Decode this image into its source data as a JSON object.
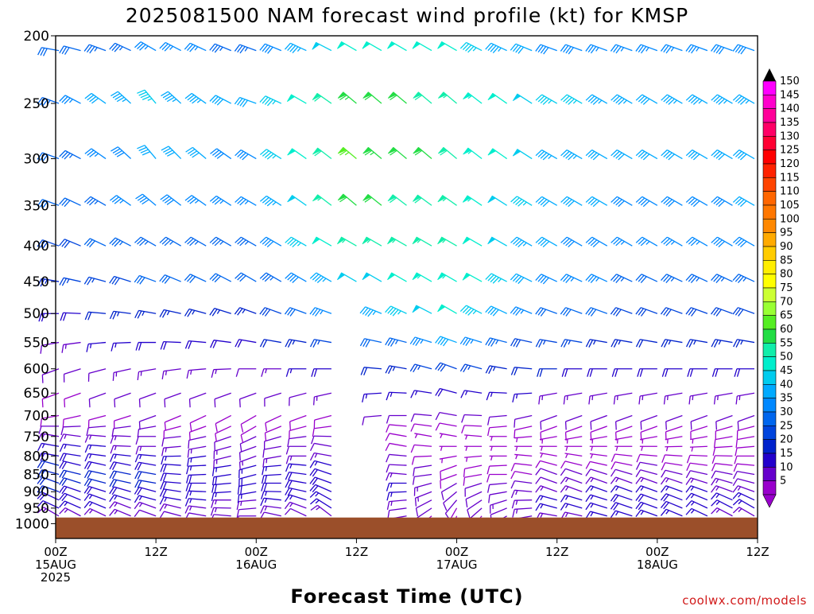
{
  "chart_data": {
    "type": "wind-barb-timeseries",
    "title": "2025081500 NAM forecast wind profile (kt) for KMSP",
    "xlabel": "Forecast Time (UTC)",
    "ylabel": "",
    "y_scale": "log",
    "ylim": [
      1000,
      200
    ],
    "pressure_ticks": [
      "200",
      "250",
      "300",
      "350",
      "400",
      "450",
      "500",
      "550",
      "600",
      "650",
      "700",
      "750",
      "800",
      "850",
      "900",
      "950",
      "1000"
    ],
    "x_ticks": [
      {
        "hour": 0,
        "line1": "00Z",
        "line2": "15AUG",
        "line3": "2025"
      },
      {
        "hour": 12,
        "line1": "12Z",
        "line2": "",
        "line3": ""
      },
      {
        "hour": 24,
        "line1": "00Z",
        "line2": "16AUG",
        "line3": ""
      },
      {
        "hour": 36,
        "line1": "12Z",
        "line2": "",
        "line3": ""
      },
      {
        "hour": 48,
        "line1": "00Z",
        "line2": "17AUG",
        "line3": ""
      },
      {
        "hour": 60,
        "line1": "12Z",
        "line2": "",
        "line3": ""
      },
      {
        "hour": 72,
        "line1": "00Z",
        "line2": "18AUG",
        "line3": ""
      },
      {
        "hour": 84,
        "line1": "12Z",
        "line2": "",
        "line3": ""
      }
    ],
    "xlim": [
      0,
      84
    ],
    "time_step_hours": 3,
    "pressure_levels": [
      1000,
      975,
      950,
      925,
      900,
      875,
      850,
      825,
      800,
      775,
      750,
      725,
      700,
      650,
      600,
      550,
      500,
      450,
      400,
      350,
      300,
      250,
      210
    ],
    "surface_pressure": 980,
    "surface_color": "#9b4f2a",
    "colorbar": {
      "labels": [
        "150",
        "145",
        "140",
        "135",
        "130",
        "125",
        "120",
        "115",
        "110",
        "105",
        "100",
        "95",
        "90",
        "85",
        "80",
        "75",
        "70",
        "65",
        "60",
        "55",
        "50",
        "45",
        "40",
        "35",
        "30",
        "25",
        "20",
        "15",
        "10",
        "5"
      ],
      "colors": [
        "#ff00ff",
        "#ff00cc",
        "#ff0099",
        "#ff0066",
        "#ff0033",
        "#ff0000",
        "#ff2200",
        "#ff4400",
        "#ff6600",
        "#ff7700",
        "#ff8800",
        "#ffaa00",
        "#ffcc00",
        "#ffee00",
        "#ffff00",
        "#ccff33",
        "#99ff33",
        "#55ee22",
        "#22dd44",
        "#11eeaa",
        "#00eecc",
        "#00ccee",
        "#00aaff",
        "#0088ff",
        "#0066ee",
        "#0044dd",
        "#0022cc",
        "#2200cc",
        "#6600cc",
        "#9900cc"
      ]
    },
    "wind_profile_columns": [
      {
        "hour": 0,
        "speeds_kt": [
          12,
          14,
          16,
          18,
          20,
          22,
          22,
          20,
          18,
          16,
          14,
          10,
          8,
          8,
          10,
          12,
          18,
          24,
          28,
          30,
          32,
          34,
          30
        ],
        "directions_deg": [
          300,
          300,
          295,
          295,
          290,
          290,
          285,
          285,
          280,
          280,
          280,
          270,
          260,
          250,
          250,
          260,
          270,
          280,
          290,
          290,
          290,
          290,
          280
        ]
      },
      {
        "hour": 12,
        "speeds_kt": [
          10,
          12,
          14,
          16,
          18,
          20,
          20,
          18,
          16,
          14,
          12,
          10,
          10,
          12,
          14,
          18,
          24,
          30,
          34,
          38,
          42,
          46,
          36
        ],
        "directions_deg": [
          290,
          290,
          290,
          285,
          285,
          280,
          280,
          280,
          275,
          270,
          270,
          260,
          250,
          250,
          260,
          270,
          280,
          290,
          300,
          310,
          320,
          320,
          300
        ]
      },
      {
        "hour": 24,
        "speeds_kt": [
          8,
          10,
          12,
          14,
          16,
          18,
          18,
          16,
          14,
          12,
          10,
          8,
          8,
          10,
          12,
          18,
          24,
          30,
          34,
          36,
          38,
          40,
          34
        ],
        "directions_deg": [
          270,
          270,
          265,
          265,
          260,
          260,
          255,
          255,
          250,
          250,
          245,
          240,
          240,
          250,
          270,
          280,
          290,
          300,
          300,
          300,
          300,
          290,
          290
        ]
      },
      {
        "hour": 36,
        "speeds_kt": [
          10,
          14,
          16,
          18,
          20,
          20,
          18,
          16,
          14,
          12,
          10,
          8,
          10,
          14,
          20,
          28,
          40,
          48,
          56,
          62,
          66,
          64,
          52
        ],
        "directions_deg": [
          320,
          320,
          315,
          310,
          305,
          300,
          300,
          295,
          290,
          290,
          280,
          270,
          260,
          260,
          270,
          280,
          290,
          300,
          300,
          310,
          310,
          310,
          300
        ]
      },
      {
        "hour": 48,
        "speeds_kt": [
          6,
          8,
          8,
          10,
          10,
          10,
          8,
          8,
          6,
          6,
          6,
          8,
          12,
          18,
          28,
          40,
          50,
          54,
          56,
          56,
          58,
          56,
          50
        ],
        "directions_deg": [
          200,
          200,
          210,
          220,
          230,
          240,
          250,
          250,
          260,
          270,
          280,
          280,
          280,
          285,
          290,
          290,
          300,
          300,
          300,
          305,
          310,
          310,
          300
        ]
      },
      {
        "hour": 60,
        "speeds_kt": [
          12,
          14,
          16,
          16,
          14,
          12,
          10,
          8,
          6,
          6,
          6,
          8,
          10,
          14,
          20,
          26,
          32,
          38,
          40,
          42,
          44,
          46,
          38
        ],
        "directions_deg": [
          280,
          280,
          285,
          285,
          290,
          290,
          290,
          285,
          280,
          270,
          260,
          250,
          250,
          260,
          270,
          280,
          290,
          295,
          300,
          300,
          300,
          300,
          290
        ]
      },
      {
        "hour": 72,
        "speeds_kt": [
          14,
          16,
          18,
          18,
          16,
          14,
          12,
          10,
          8,
          6,
          6,
          8,
          10,
          14,
          18,
          22,
          28,
          32,
          36,
          38,
          40,
          42,
          36
        ],
        "directions_deg": [
          290,
          290,
          290,
          290,
          290,
          290,
          285,
          280,
          275,
          270,
          260,
          250,
          250,
          260,
          270,
          280,
          290,
          295,
          300,
          300,
          300,
          300,
          290
        ]
      },
      {
        "hour": 84,
        "speeds_kt": [
          12,
          14,
          16,
          16,
          14,
          12,
          10,
          8,
          8,
          8,
          8,
          8,
          10,
          14,
          18,
          24,
          28,
          34,
          38,
          40,
          42,
          44,
          38
        ],
        "directions_deg": [
          300,
          300,
          300,
          295,
          290,
          285,
          280,
          275,
          270,
          265,
          260,
          255,
          250,
          260,
          270,
          280,
          290,
          295,
          300,
          300,
          300,
          300,
          290
        ]
      }
    ],
    "blank_regions": [
      {
        "hour_from": 33,
        "hour_to": 39,
        "p_from": 1000,
        "p_to": 460
      },
      {
        "hour_from": 36,
        "hour_to": 42,
        "p_from": 1000,
        "p_to": 720
      }
    ]
  },
  "credit": "coolwx.com/models"
}
